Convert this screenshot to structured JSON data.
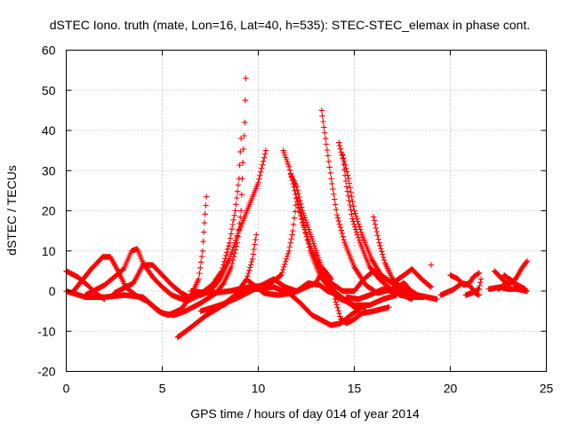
{
  "chart_data": {
    "type": "scatter",
    "title": "dSTEC Iono. truth (mate, Lon=16, Lat=40, h=535): STEC-STEC_elemax in phase cont.",
    "xlabel": "GPS time / hours of day 014 of year 2014",
    "ylabel": "dSTEC  / TECUs",
    "xlim": [
      0,
      25
    ],
    "ylim": [
      -20,
      60
    ],
    "xticks": [
      0,
      5,
      10,
      15,
      20,
      25
    ],
    "yticks": [
      -20,
      -10,
      0,
      10,
      20,
      30,
      40,
      50,
      60
    ],
    "grid": true,
    "marker": "plus",
    "color": "#ff0000",
    "tracks": [
      [
        [
          0.0,
          5.0
        ],
        [
          0.6,
          3.5
        ],
        [
          1.1,
          1.5
        ],
        [
          1.6,
          -0.8
        ],
        [
          2.0,
          -2.0
        ]
      ],
      [
        [
          0.0,
          0.0
        ],
        [
          1.0,
          -1.5
        ],
        [
          2.0,
          -1.5
        ],
        [
          3.0,
          -1.0
        ],
        [
          4.0,
          -1.5
        ],
        [
          4.6,
          -4.0
        ],
        [
          5.0,
          -5.5
        ],
        [
          5.6,
          -6.0
        ],
        [
          6.2,
          -5.0
        ],
        [
          7.0,
          -3.0
        ],
        [
          7.8,
          -0.5
        ],
        [
          8.2,
          2.0
        ],
        [
          8.6,
          6.0
        ],
        [
          8.9,
          12.0
        ],
        [
          9.1,
          20.0
        ],
        [
          9.2,
          32.0
        ],
        [
          9.3,
          42.0
        ],
        [
          9.35,
          53.0
        ]
      ],
      [
        [
          0.3,
          -0.5
        ],
        [
          0.8,
          2.5
        ],
        [
          1.3,
          5.5
        ],
        [
          1.9,
          8.5
        ],
        [
          2.3,
          8.5
        ],
        [
          2.7,
          5.0
        ],
        [
          3.1,
          1.0
        ],
        [
          3.6,
          -1.0
        ],
        [
          4.2,
          -2.5
        ],
        [
          4.8,
          -5.0
        ],
        [
          5.3,
          -6.0
        ],
        [
          6.0,
          -4.5
        ],
        [
          6.5,
          -1.0
        ],
        [
          6.9,
          3.0
        ],
        [
          7.1,
          10.0
        ],
        [
          7.2,
          17.0
        ],
        [
          7.3,
          23.5
        ]
      ],
      [
        [
          1.0,
          -1.0
        ],
        [
          2.0,
          1.5
        ],
        [
          3.0,
          5.5
        ],
        [
          3.4,
          10.0
        ],
        [
          3.7,
          10.5
        ],
        [
          4.0,
          7.0
        ],
        [
          4.5,
          3.5
        ],
        [
          5.0,
          1.0
        ],
        [
          5.5,
          -1.0
        ],
        [
          6.3,
          -2.5
        ],
        [
          6.9,
          -1.0
        ],
        [
          7.6,
          1.5
        ],
        [
          8.1,
          5.0
        ],
        [
          8.5,
          12.0
        ],
        [
          8.8,
          20.0
        ],
        [
          9.0,
          28.0
        ],
        [
          9.1,
          38.0
        ]
      ],
      [
        [
          2.5,
          -0.5
        ],
        [
          3.5,
          2.0
        ],
        [
          4.0,
          6.5
        ],
        [
          4.5,
          6.5
        ],
        [
          5.0,
          4.0
        ],
        [
          5.5,
          1.5
        ],
        [
          6.0,
          -0.5
        ],
        [
          6.4,
          -1.5
        ],
        [
          7.0,
          -1.0
        ],
        [
          7.5,
          0.0
        ],
        [
          8.0,
          3.0
        ],
        [
          8.5,
          8.0
        ],
        [
          9.0,
          15.0
        ],
        [
          9.5,
          21.0
        ],
        [
          10.0,
          27.0
        ],
        [
          10.4,
          35.0
        ]
      ],
      [
        [
          5.8,
          -11.5
        ],
        [
          6.5,
          -9.0
        ],
        [
          7.3,
          -6.0
        ],
        [
          8.0,
          -4.0
        ],
        [
          8.8,
          -1.0
        ],
        [
          9.4,
          3.0
        ],
        [
          9.7,
          8.0
        ],
        [
          9.9,
          14.0
        ]
      ],
      [
        [
          6.5,
          0.0
        ],
        [
          7.5,
          -0.5
        ],
        [
          8.5,
          0.0
        ],
        [
          9.5,
          1.0
        ],
        [
          10.5,
          1.5
        ],
        [
          11.2,
          4.0
        ],
        [
          11.6,
          10.0
        ],
        [
          11.8,
          15.0
        ],
        [
          12.0,
          23.0
        ],
        [
          12.3,
          18.0
        ],
        [
          12.7,
          10.0
        ],
        [
          13.2,
          4.0
        ],
        [
          13.8,
          0.0
        ],
        [
          14.2,
          -2.0
        ]
      ],
      [
        [
          7.0,
          -5.0
        ],
        [
          8.0,
          -3.5
        ],
        [
          9.0,
          -1.5
        ],
        [
          10.0,
          1.0
        ],
        [
          10.8,
          3.0
        ],
        [
          11.4,
          1.0
        ],
        [
          12.0,
          0.0
        ],
        [
          12.6,
          2.0
        ],
        [
          13.2,
          1.5
        ],
        [
          13.6,
          0.0
        ],
        [
          14.2,
          -1.0
        ],
        [
          15.0,
          -4.0
        ],
        [
          15.6,
          -4.0
        ]
      ],
      [
        [
          9.5,
          2.5
        ],
        [
          10.3,
          -0.5
        ],
        [
          11.0,
          -1.0
        ],
        [
          11.8,
          -0.5
        ],
        [
          12.5,
          1.0
        ],
        [
          13.0,
          2.0
        ],
        [
          13.4,
          5.5
        ],
        [
          13.8,
          3.0
        ],
        [
          14.0,
          -2.0
        ],
        [
          14.3,
          -7.0
        ],
        [
          14.6,
          -8.0
        ],
        [
          15.0,
          -7.0
        ],
        [
          15.4,
          -5.5
        ],
        [
          16.0,
          -5.0
        ],
        [
          16.8,
          -4.0
        ]
      ],
      [
        [
          8.2,
          -3.5
        ],
        [
          8.8,
          -1.5
        ],
        [
          9.4,
          0.5
        ],
        [
          10.0,
          0.5
        ],
        [
          10.8,
          1.0
        ],
        [
          11.6,
          -0.5
        ],
        [
          12.2,
          -3.0
        ],
        [
          12.8,
          -6.0
        ],
        [
          13.4,
          -7.5
        ],
        [
          13.8,
          -8.5
        ],
        [
          14.3,
          -8.0
        ],
        [
          14.8,
          -6.0
        ],
        [
          15.3,
          -4.5
        ]
      ],
      [
        [
          11.3,
          35.0
        ],
        [
          11.6,
          31.0
        ],
        [
          11.9,
          25.0
        ],
        [
          12.3,
          17.0
        ],
        [
          12.8,
          10.0
        ],
        [
          13.3,
          5.0
        ],
        [
          13.8,
          1.0
        ],
        [
          14.3,
          -2.0
        ],
        [
          15.0,
          -3.5
        ],
        [
          15.8,
          -3.5
        ],
        [
          16.5,
          -2.0
        ],
        [
          17.2,
          -1.0
        ]
      ],
      [
        [
          11.7,
          29.0
        ],
        [
          12.0,
          26.0
        ],
        [
          12.3,
          20.0
        ],
        [
          12.8,
          13.0
        ],
        [
          13.3,
          6.0
        ],
        [
          13.8,
          2.0
        ],
        [
          14.4,
          0.0
        ],
        [
          15.0,
          0.0
        ]
      ],
      [
        [
          13.3,
          45.0
        ],
        [
          13.5,
          38.0
        ],
        [
          13.8,
          28.0
        ],
        [
          14.1,
          19.0
        ],
        [
          14.5,
          12.0
        ],
        [
          15.0,
          6.0
        ],
        [
          15.6,
          1.5
        ],
        [
          16.2,
          -0.5
        ],
        [
          17.0,
          0.5
        ],
        [
          17.6,
          2.0
        ],
        [
          18.2,
          -1.5
        ]
      ],
      [
        [
          14.2,
          37.0
        ],
        [
          14.4,
          33.0
        ],
        [
          14.6,
          26.0
        ],
        [
          14.9,
          18.0
        ],
        [
          15.3,
          12.0
        ],
        [
          15.8,
          6.0
        ],
        [
          16.3,
          3.0
        ],
        [
          16.9,
          0.5
        ],
        [
          17.4,
          -1.0
        ],
        [
          18.0,
          -1.5
        ],
        [
          18.6,
          -1.5
        ]
      ],
      [
        [
          14.4,
          34.0
        ],
        [
          14.7,
          28.0
        ],
        [
          15.0,
          20.0
        ],
        [
          15.4,
          14.0
        ],
        [
          15.9,
          8.0
        ],
        [
          16.4,
          4.0
        ],
        [
          17.1,
          1.5
        ],
        [
          17.6,
          0.0
        ],
        [
          18.2,
          -1.0
        ]
      ],
      [
        [
          16.0,
          18.5
        ],
        [
          16.3,
          12.0
        ],
        [
          16.6,
          7.0
        ],
        [
          17.0,
          3.0
        ],
        [
          17.4,
          1.0
        ],
        [
          17.8,
          0.5
        ],
        [
          18.3,
          -1.0
        ],
        [
          18.8,
          -1.5
        ],
        [
          19.3,
          -2.0
        ]
      ],
      [
        [
          15.0,
          0.0
        ],
        [
          15.5,
          3.0
        ],
        [
          16.0,
          5.0
        ],
        [
          16.5,
          3.5
        ],
        [
          17.0,
          2.0
        ],
        [
          17.6,
          4.0
        ],
        [
          18.0,
          5.5
        ],
        [
          18.5,
          3.0
        ],
        [
          19.0,
          1.0
        ],
        [
          19.0,
          6.5
        ]
      ],
      [
        [
          14.6,
          -1.5
        ],
        [
          15.2,
          -2.0
        ],
        [
          15.8,
          -1.0
        ],
        [
          16.5,
          0.5
        ],
        [
          17.3,
          -0.5
        ],
        [
          18.0,
          -2.0
        ]
      ],
      [
        [
          19.5,
          -1.0
        ],
        [
          20.2,
          0.5
        ],
        [
          20.6,
          2.0
        ],
        [
          21.0,
          1.5
        ],
        [
          21.3,
          -0.5
        ],
        [
          21.5,
          -1.0
        ]
      ],
      [
        [
          20.0,
          4.0
        ],
        [
          20.4,
          3.0
        ],
        [
          20.7,
          1.5
        ],
        [
          21.0,
          2.0
        ],
        [
          21.2,
          3.5
        ],
        [
          21.5,
          4.5
        ]
      ],
      [
        [
          20.8,
          -1.0
        ],
        [
          21.1,
          -0.5
        ],
        [
          21.5,
          0.5
        ],
        [
          21.6,
          3.0
        ]
      ],
      [
        [
          22.0,
          0.5
        ],
        [
          22.6,
          1.0
        ],
        [
          23.0,
          0.5
        ],
        [
          23.5,
          0.5
        ],
        [
          24.0,
          0.0
        ]
      ],
      [
        [
          22.3,
          5.0
        ],
        [
          22.7,
          3.0
        ],
        [
          23.0,
          1.5
        ],
        [
          23.4,
          3.0
        ],
        [
          23.7,
          5.5
        ],
        [
          24.0,
          7.5
        ]
      ],
      [
        [
          22.5,
          0.5
        ],
        [
          22.8,
          1.5
        ],
        [
          23.1,
          3.0
        ],
        [
          23.5,
          1.5
        ],
        [
          23.9,
          0.5
        ]
      ],
      [
        [
          22.8,
          4.0
        ],
        [
          23.2,
          2.5
        ],
        [
          23.6,
          0.5
        ],
        [
          24.0,
          0.0
        ]
      ]
    ]
  }
}
